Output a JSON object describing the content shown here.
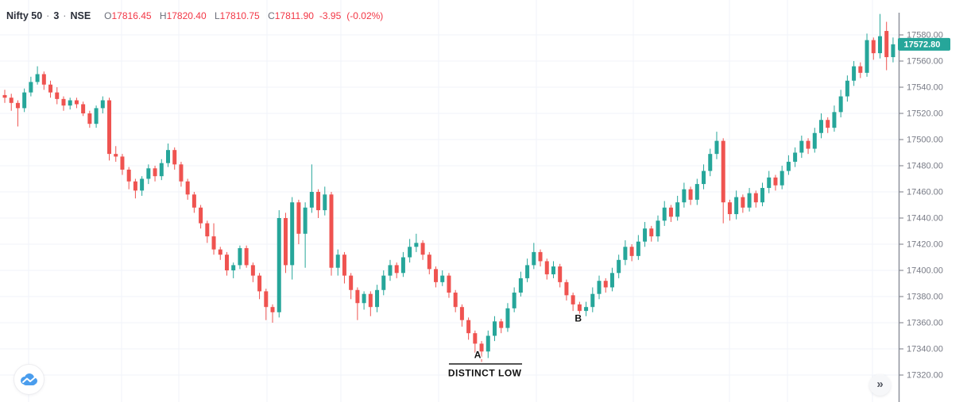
{
  "header": {
    "symbol": "Nifty 50",
    "separator": "·",
    "interval": "3",
    "exchange": "NSE",
    "ohlc": {
      "open_label": "O",
      "open": "17816.45",
      "high_label": "H",
      "high": "17820.40",
      "low_label": "L",
      "low": "17810.75",
      "close_label": "C",
      "close": "17811.90",
      "change": "-3.95",
      "change_pct": "(-0.02%)"
    }
  },
  "buttons": {
    "scroll_right_icon": "»"
  },
  "colors": {
    "candle_up": "#26a69a",
    "candle_down": "#ef5350",
    "last_price_bg": "#26a69a",
    "last_price_text": "#ffffff",
    "grid": "#f0f3fa",
    "axis_line": "#8f939e",
    "axis_text": "#787b86",
    "annotation_text": "#111111",
    "annotation_line": "#555555",
    "logo_blue": "#4a9ded"
  },
  "chart_data": {
    "type": "candlestick",
    "symbol": "Nifty 50",
    "timeframe_minutes": 3,
    "exchange": "NSE",
    "ohlc_readout": {
      "open": 17816.45,
      "high": 17820.4,
      "low": 17810.75,
      "close": 17811.9,
      "change": -3.95,
      "change_pct": -0.02
    },
    "last_price": 17572.8,
    "last_price_label": "17572.80",
    "y_axis": {
      "min": 17320,
      "max": 17580,
      "step": 20,
      "tick_labels": [
        "17580.00",
        "17560.00",
        "17540.00",
        "17520.00",
        "17500.00",
        "17480.00",
        "17460.00",
        "17440.00",
        "17420.00",
        "17400.00",
        "17380.00",
        "17360.00",
        "17340.00",
        "17320.00"
      ]
    },
    "grid": true,
    "candles": [
      [
        17534,
        17538,
        17528,
        17532
      ],
      [
        17532,
        17535,
        17522,
        17528
      ],
      [
        17528,
        17530,
        17510,
        17524
      ],
      [
        17524,
        17539,
        17521,
        17536
      ],
      [
        17536,
        17548,
        17533,
        17544
      ],
      [
        17544,
        17556,
        17542,
        17550
      ],
      [
        17550,
        17552,
        17538,
        17542
      ],
      [
        17542,
        17545,
        17532,
        17536
      ],
      [
        17536,
        17540,
        17527,
        17531
      ],
      [
        17531,
        17533,
        17522,
        17526
      ],
      [
        17526,
        17532,
        17523,
        17530
      ],
      [
        17530,
        17532,
        17524,
        17527
      ],
      [
        17527,
        17529,
        17518,
        17520
      ],
      [
        17520,
        17522,
        17509,
        17512
      ],
      [
        17512,
        17526,
        17509,
        17524
      ],
      [
        17524,
        17533,
        17520,
        17530
      ],
      [
        17530,
        17532,
        17484,
        17489
      ],
      [
        17489,
        17495,
        17483,
        17487
      ],
      [
        17487,
        17489,
        17473,
        17477
      ],
      [
        17477,
        17479,
        17462,
        17468
      ],
      [
        17468,
        17470,
        17455,
        17461
      ],
      [
        17461,
        17472,
        17457,
        17470
      ],
      [
        17470,
        17481,
        17466,
        17478
      ],
      [
        17478,
        17480,
        17468,
        17472
      ],
      [
        17472,
        17485,
        17469,
        17482
      ],
      [
        17482,
        17497,
        17479,
        17492
      ],
      [
        17492,
        17494,
        17477,
        17481
      ],
      [
        17481,
        17483,
        17464,
        17468
      ],
      [
        17468,
        17470,
        17454,
        17458
      ],
      [
        17458,
        17460,
        17444,
        17448
      ],
      [
        17448,
        17450,
        17432,
        17436
      ],
      [
        17436,
        17438,
        17421,
        17426
      ],
      [
        17426,
        17436,
        17412,
        17416
      ],
      [
        17416,
        17418,
        17408,
        17412
      ],
      [
        17412,
        17414,
        17396,
        17400
      ],
      [
        17400,
        17406,
        17394,
        17404
      ],
      [
        17404,
        17419,
        17401,
        17417
      ],
      [
        17417,
        17419,
        17402,
        17404
      ],
      [
        17404,
        17406,
        17391,
        17396
      ],
      [
        17396,
        17398,
        17378,
        17384
      ],
      [
        17384,
        17386,
        17362,
        17372
      ],
      [
        17372,
        17374,
        17360,
        17368
      ],
      [
        17368,
        17446,
        17364,
        17440
      ],
      [
        17440,
        17444,
        17398,
        17404
      ],
      [
        17404,
        17456,
        17393,
        17452
      ],
      [
        17452,
        17454,
        17420,
        17428
      ],
      [
        17428,
        17452,
        17402,
        17448
      ],
      [
        17448,
        17481,
        17444,
        17460
      ],
      [
        17460,
        17462,
        17440,
        17446
      ],
      [
        17446,
        17464,
        17442,
        17458
      ],
      [
        17458,
        17460,
        17396,
        17402
      ],
      [
        17402,
        17416,
        17396,
        17412
      ],
      [
        17412,
        17414,
        17390,
        17396
      ],
      [
        17396,
        17398,
        17378,
        17385
      ],
      [
        17385,
        17387,
        17362,
        17375
      ],
      [
        17375,
        17384,
        17370,
        17382
      ],
      [
        17382,
        17384,
        17365,
        17372
      ],
      [
        17372,
        17389,
        17368,
        17385
      ],
      [
        17385,
        17400,
        17381,
        17396
      ],
      [
        17396,
        17408,
        17392,
        17404
      ],
      [
        17404,
        17406,
        17394,
        17398
      ],
      [
        17398,
        17414,
        17395,
        17410
      ],
      [
        17410,
        17424,
        17406,
        17418
      ],
      [
        17418,
        17428,
        17414,
        17421
      ],
      [
        17421,
        17423,
        17408,
        17412
      ],
      [
        17412,
        17414,
        17397,
        17401
      ],
      [
        17401,
        17403,
        17387,
        17391
      ],
      [
        17391,
        17400,
        17388,
        17396
      ],
      [
        17396,
        17398,
        17379,
        17383
      ],
      [
        17383,
        17385,
        17368,
        17372
      ],
      [
        17372,
        17374,
        17357,
        17362
      ],
      [
        17362,
        17364,
        17347,
        17352
      ],
      [
        17352,
        17354,
        17337,
        17344
      ],
      [
        17344,
        17346,
        17330,
        17338
      ],
      [
        17338,
        17354,
        17333,
        17350
      ],
      [
        17350,
        17365,
        17346,
        17361
      ],
      [
        17361,
        17363,
        17352,
        17356
      ],
      [
        17356,
        17375,
        17353,
        17371
      ],
      [
        17371,
        17387,
        17368,
        17383
      ],
      [
        17383,
        17399,
        17380,
        17394
      ],
      [
        17394,
        17409,
        17391,
        17404
      ],
      [
        17404,
        17421,
        17401,
        17414
      ],
      [
        17414,
        17416,
        17403,
        17407
      ],
      [
        17407,
        17409,
        17393,
        17397
      ],
      [
        17397,
        17407,
        17394,
        17403
      ],
      [
        17403,
        17405,
        17387,
        17391
      ],
      [
        17391,
        17393,
        17377,
        17381
      ],
      [
        17381,
        17383,
        17369,
        17374
      ],
      [
        17374,
        17376,
        17364,
        17369
      ],
      [
        17369,
        17376,
        17365,
        17372
      ],
      [
        17372,
        17387,
        17368,
        17382
      ],
      [
        17382,
        17396,
        17378,
        17392
      ],
      [
        17392,
        17394,
        17383,
        17387
      ],
      [
        17387,
        17402,
        17384,
        17398
      ],
      [
        17398,
        17412,
        17394,
        17408
      ],
      [
        17408,
        17423,
        17404,
        17418
      ],
      [
        17418,
        17420,
        17407,
        17411
      ],
      [
        17411,
        17427,
        17408,
        17422
      ],
      [
        17422,
        17437,
        17418,
        17432
      ],
      [
        17432,
        17434,
        17422,
        17426
      ],
      [
        17426,
        17442,
        17422,
        17438
      ],
      [
        17438,
        17453,
        17434,
        17448
      ],
      [
        17448,
        17450,
        17437,
        17441
      ],
      [
        17441,
        17457,
        17438,
        17452
      ],
      [
        17452,
        17467,
        17448,
        17462
      ],
      [
        17462,
        17464,
        17450,
        17454
      ],
      [
        17454,
        17470,
        17450,
        17466
      ],
      [
        17466,
        17481,
        17462,
        17476
      ],
      [
        17476,
        17493,
        17472,
        17489
      ],
      [
        17489,
        17506,
        17485,
        17499
      ],
      [
        17499,
        17501,
        17436,
        17452
      ],
      [
        17452,
        17454,
        17438,
        17443
      ],
      [
        17443,
        17461,
        17439,
        17456
      ],
      [
        17456,
        17458,
        17444,
        17448
      ],
      [
        17448,
        17463,
        17445,
        17459
      ],
      [
        17459,
        17461,
        17448,
        17452
      ],
      [
        17452,
        17467,
        17449,
        17463
      ],
      [
        17463,
        17476,
        17459,
        17471
      ],
      [
        17471,
        17473,
        17461,
        17465
      ],
      [
        17465,
        17480,
        17462,
        17476
      ],
      [
        17476,
        17488,
        17473,
        17483
      ],
      [
        17483,
        17494,
        17479,
        17490
      ],
      [
        17490,
        17503,
        17486,
        17499
      ],
      [
        17499,
        17501,
        17489,
        17493
      ],
      [
        17493,
        17509,
        17490,
        17505
      ],
      [
        17505,
        17520,
        17501,
        17515
      ],
      [
        17515,
        17517,
        17505,
        17509
      ],
      [
        17509,
        17526,
        17506,
        17521
      ],
      [
        17521,
        17538,
        17517,
        17533
      ],
      [
        17533,
        17549,
        17529,
        17545
      ],
      [
        17545,
        17560,
        17541,
        17556
      ],
      [
        17556,
        17559,
        17547,
        17551
      ],
      [
        17551,
        17581,
        17548,
        17576
      ],
      [
        17576,
        17578,
        17561,
        17566
      ],
      [
        17566,
        17596,
        17562,
        17579
      ],
      [
        17583,
        17590,
        17553,
        17563
      ],
      [
        17563,
        17578,
        17559,
        17572.8
      ]
    ],
    "annotations": {
      "a": {
        "text": "A",
        "candle_index": 72.4,
        "price": 17333
      },
      "b": {
        "text": "B",
        "candle_index": 87.8,
        "price": 17361
      },
      "distinct_low": {
        "text": "DISTINCT LOW",
        "candle_index": 73.5,
        "price": 17319
      },
      "underline": {
        "from_index": 68,
        "to_index": 79.2,
        "price": 17328.5
      }
    }
  }
}
